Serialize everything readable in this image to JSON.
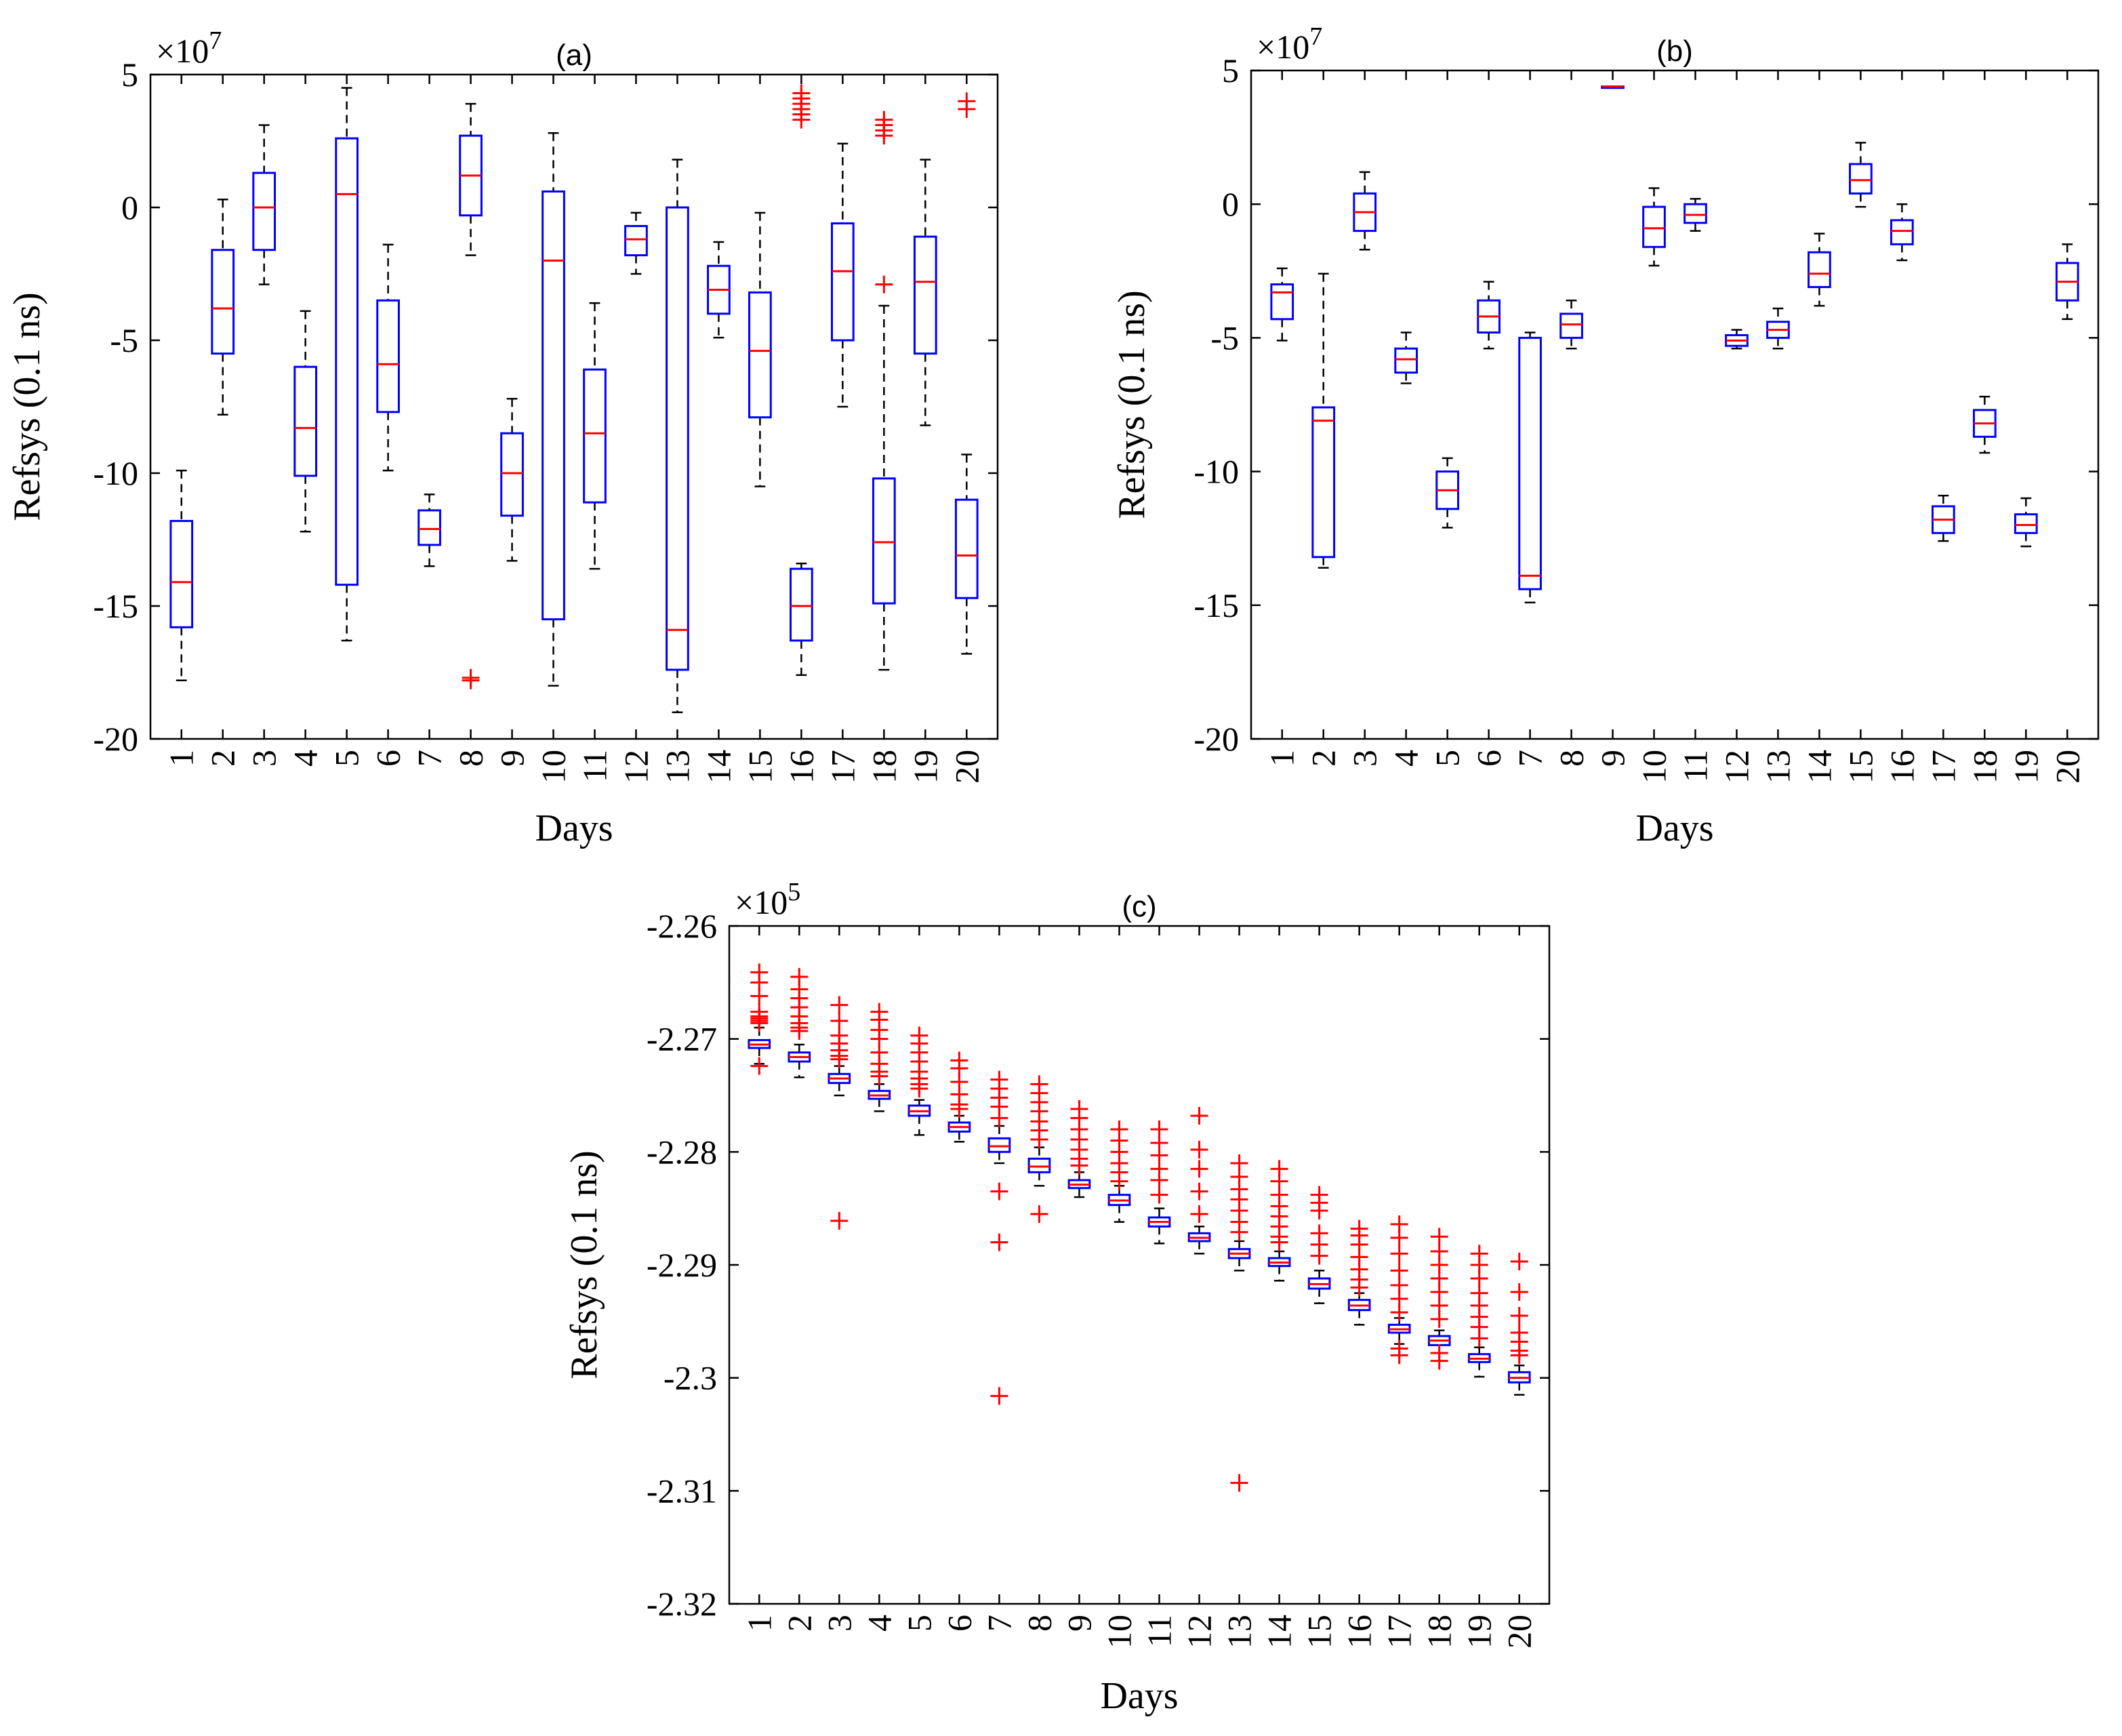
{
  "chart_data": [
    {
      "id": "a",
      "type": "box",
      "title": "(a)",
      "xlabel": "Days",
      "ylabel": "Refsys (0.1 ns)",
      "exponent_label": "×10",
      "exponent_power": "7",
      "ylim": [
        -20,
        5
      ],
      "yticks": [
        5,
        0,
        -5,
        -10,
        -15,
        -20
      ],
      "ytick_labels": [
        "5",
        "0",
        "-5",
        "-10",
        "-15",
        "-20"
      ],
      "categories": [
        "1",
        "2",
        "3",
        "4",
        "5",
        "6",
        "7",
        "8",
        "9",
        "10",
        "11",
        "12",
        "13",
        "14",
        "15",
        "16",
        "17",
        "18",
        "19",
        "20"
      ],
      "boxes": [
        {
          "wlo": -17.8,
          "q1": -15.8,
          "med": -14.1,
          "q3": -11.8,
          "whi": -9.9,
          "outliers": []
        },
        {
          "wlo": -7.8,
          "q1": -5.5,
          "med": -3.8,
          "q3": -1.6,
          "whi": 0.3,
          "outliers": []
        },
        {
          "wlo": -2.9,
          "q1": -1.6,
          "med": 0.0,
          "q3": 1.3,
          "whi": 3.1,
          "outliers": []
        },
        {
          "wlo": -12.2,
          "q1": -10.1,
          "med": -8.3,
          "q3": -6.0,
          "whi": -3.9,
          "outliers": []
        },
        {
          "wlo": -16.3,
          "q1": -14.2,
          "med": 0.5,
          "q3": 2.6,
          "whi": 4.5,
          "outliers": []
        },
        {
          "wlo": -9.9,
          "q1": -7.7,
          "med": -5.9,
          "q3": -3.5,
          "whi": -1.4,
          "outliers": []
        },
        {
          "wlo": -13.5,
          "q1": -12.7,
          "med": -12.1,
          "q3": -11.4,
          "whi": -10.8,
          "outliers": []
        },
        {
          "wlo": -1.8,
          "q1": -0.3,
          "med": 1.2,
          "q3": 2.7,
          "whi": 3.9,
          "outliers": [
            -17.7,
            -17.8
          ]
        },
        {
          "wlo": -13.3,
          "q1": -11.6,
          "med": -10.0,
          "q3": -8.5,
          "whi": -7.2,
          "outliers": []
        },
        {
          "wlo": -18.0,
          "q1": -15.5,
          "med": -2.0,
          "q3": 0.6,
          "whi": 2.8,
          "outliers": []
        },
        {
          "wlo": -13.6,
          "q1": -11.1,
          "med": -8.5,
          "q3": -6.1,
          "whi": -3.6,
          "outliers": []
        },
        {
          "wlo": -2.5,
          "q1": -1.8,
          "med": -1.2,
          "q3": -0.7,
          "whi": -0.2,
          "outliers": []
        },
        {
          "wlo": -19.0,
          "q1": -17.4,
          "med": -15.9,
          "q3": 0.0,
          "whi": 1.8,
          "outliers": []
        },
        {
          "wlo": -4.9,
          "q1": -4.0,
          "med": -3.1,
          "q3": -2.2,
          "whi": -1.3,
          "outliers": []
        },
        {
          "wlo": -10.5,
          "q1": -7.9,
          "med": -5.4,
          "q3": -3.2,
          "whi": -0.2,
          "outliers": []
        },
        {
          "wlo": -17.6,
          "q1": -16.3,
          "med": -15.0,
          "q3": -13.6,
          "whi": -13.4,
          "outliers": [
            3.3,
            3.5,
            3.7,
            3.9,
            4.1,
            4.3
          ]
        },
        {
          "wlo": -7.5,
          "q1": -5.0,
          "med": -2.4,
          "q3": -0.6,
          "whi": 2.4,
          "outliers": []
        },
        {
          "wlo": -17.4,
          "q1": -14.9,
          "med": -12.6,
          "q3": -10.2,
          "whi": -3.7,
          "outliers": [
            -2.9,
            2.7,
            2.9,
            3.1,
            3.3
          ]
        },
        {
          "wlo": -8.2,
          "q1": -5.5,
          "med": -2.8,
          "q3": -1.1,
          "whi": 1.8,
          "outliers": []
        },
        {
          "wlo": -16.8,
          "q1": -14.7,
          "med": -13.1,
          "q3": -11.0,
          "whi": -9.3,
          "outliers": [
            3.7,
            4.0
          ]
        }
      ]
    },
    {
      "id": "b",
      "type": "box",
      "title": "(b)",
      "xlabel": "Days",
      "ylabel": "Refsys (0.1 ns)",
      "exponent_label": "×10",
      "exponent_power": "7",
      "ylim": [
        -20,
        5
      ],
      "yticks": [
        5,
        0,
        -5,
        -10,
        -15,
        -20
      ],
      "ytick_labels": [
        "5",
        "0",
        "-5",
        "-10",
        "-15",
        "-20"
      ],
      "categories": [
        "1",
        "2",
        "3",
        "4",
        "5",
        "6",
        "7",
        "8",
        "9",
        "10",
        "11",
        "12",
        "13",
        "14",
        "15",
        "16",
        "17",
        "18",
        "19",
        "20"
      ],
      "boxes": [
        {
          "wlo": -5.1,
          "q1": -4.3,
          "med": -3.3,
          "q3": -3.0,
          "whi": -2.4,
          "outliers": []
        },
        {
          "wlo": -13.6,
          "q1": -13.2,
          "med": -8.1,
          "q3": -7.6,
          "whi": -2.6,
          "outliers": []
        },
        {
          "wlo": -1.7,
          "q1": -1.0,
          "med": -0.3,
          "q3": 0.4,
          "whi": 1.2,
          "outliers": []
        },
        {
          "wlo": -6.7,
          "q1": -6.3,
          "med": -5.8,
          "q3": -5.4,
          "whi": -4.8,
          "outliers": []
        },
        {
          "wlo": -12.1,
          "q1": -11.4,
          "med": -10.7,
          "q3": -10.0,
          "whi": -9.5,
          "outliers": []
        },
        {
          "wlo": -5.4,
          "q1": -4.8,
          "med": -4.2,
          "q3": -3.6,
          "whi": -2.9,
          "outliers": []
        },
        {
          "wlo": -14.9,
          "q1": -14.4,
          "med": -13.9,
          "q3": -5.0,
          "whi": -4.8,
          "outliers": []
        },
        {
          "wlo": -5.4,
          "q1": -5.0,
          "med": -4.5,
          "q3": -4.1,
          "whi": -3.6,
          "outliers": []
        },
        {
          "wlo": 4.4,
          "q1": 4.4,
          "med": 4.4,
          "q3": 4.4,
          "whi": 4.4,
          "outliers": []
        },
        {
          "wlo": -2.3,
          "q1": -1.6,
          "med": -0.9,
          "q3": -0.1,
          "whi": 0.6,
          "outliers": []
        },
        {
          "wlo": -1.0,
          "q1": -0.7,
          "med": -0.4,
          "q3": 0.0,
          "whi": 0.2,
          "outliers": []
        },
        {
          "wlo": -5.4,
          "q1": -5.3,
          "med": -5.1,
          "q3": -4.9,
          "whi": -4.7,
          "outliers": []
        },
        {
          "wlo": -5.4,
          "q1": -5.0,
          "med": -4.7,
          "q3": -4.4,
          "whi": -3.9,
          "outliers": []
        },
        {
          "wlo": -3.8,
          "q1": -3.1,
          "med": -2.6,
          "q3": -1.8,
          "whi": -1.1,
          "outliers": []
        },
        {
          "wlo": -0.1,
          "q1": 0.4,
          "med": 0.9,
          "q3": 1.5,
          "whi": 2.3,
          "outliers": []
        },
        {
          "wlo": -2.1,
          "q1": -1.5,
          "med": -1.0,
          "q3": -0.6,
          "whi": 0.0,
          "outliers": []
        },
        {
          "wlo": -12.6,
          "q1": -12.3,
          "med": -11.8,
          "q3": -11.3,
          "whi": -10.9,
          "outliers": []
        },
        {
          "wlo": -9.3,
          "q1": -8.7,
          "med": -8.2,
          "q3": -7.7,
          "whi": -7.2,
          "outliers": []
        },
        {
          "wlo": -12.8,
          "q1": -12.3,
          "med": -12.0,
          "q3": -11.6,
          "whi": -11.0,
          "outliers": []
        },
        {
          "wlo": -4.3,
          "q1": -3.6,
          "med": -2.9,
          "q3": -2.2,
          "whi": -1.5,
          "outliers": []
        }
      ]
    },
    {
      "id": "c",
      "type": "box",
      "title": "(c)",
      "xlabel": "Days",
      "ylabel": "Refsys (0.1 ns)",
      "exponent_label": "×10",
      "exponent_power": "5",
      "ylim": [
        -2.32,
        -2.26
      ],
      "yticks": [
        -2.26,
        -2.27,
        -2.28,
        -2.29,
        -2.3,
        -2.31,
        -2.32
      ],
      "ytick_labels": [
        "-2.26",
        "-2.27",
        "-2.28",
        "-2.29",
        "-2.3",
        "-2.31",
        "-2.32"
      ],
      "categories": [
        "1",
        "2",
        "3",
        "4",
        "5",
        "6",
        "7",
        "8",
        "9",
        "10",
        "11",
        "12",
        "13",
        "14",
        "15",
        "16",
        "17",
        "18",
        "19",
        "20"
      ],
      "boxes": [
        {
          "wlo": -2.2722,
          "q1": -2.2708,
          "med": -2.2705,
          "q3": -2.2701,
          "whi": -2.269,
          "outliers": [
            -2.2641,
            -2.265,
            -2.2662,
            -2.2676,
            -2.268,
            -2.2682,
            -2.2684,
            -2.2686,
            -2.2724
          ]
        },
        {
          "wlo": -2.2734,
          "q1": -2.272,
          "med": -2.2716,
          "q3": -2.2712,
          "whi": -2.2705,
          "outliers": [
            -2.2645,
            -2.2656,
            -2.2664,
            -2.2672,
            -2.268,
            -2.2686,
            -2.269,
            -2.2693
          ]
        },
        {
          "wlo": -2.275,
          "q1": -2.2739,
          "med": -2.2735,
          "q3": -2.2731,
          "whi": -2.2724,
          "outliers": [
            -2.267,
            -2.2684,
            -2.2697,
            -2.2704,
            -2.271,
            -2.2715,
            -2.2718,
            -2.2861
          ]
        },
        {
          "wlo": -2.2764,
          "q1": -2.2753,
          "med": -2.275,
          "q3": -2.2746,
          "whi": -2.274,
          "outliers": [
            -2.2676,
            -2.2683,
            -2.2692,
            -2.27,
            -2.2712,
            -2.2722,
            -2.2729,
            -2.2733
          ]
        },
        {
          "wlo": -2.2785,
          "q1": -2.2768,
          "med": -2.2764,
          "q3": -2.2759,
          "whi": -2.2754,
          "outliers": [
            -2.2697,
            -2.2704,
            -2.2712,
            -2.272,
            -2.2729,
            -2.2735,
            -2.274,
            -2.2744
          ]
        },
        {
          "wlo": -2.2791,
          "q1": -2.2782,
          "med": -2.2778,
          "q3": -2.2774,
          "whi": -2.2768,
          "outliers": [
            -2.2719,
            -2.2726,
            -2.2738,
            -2.2749,
            -2.2758,
            -2.2762
          ]
        },
        {
          "wlo": -2.281,
          "q1": -2.28,
          "med": -2.2795,
          "q3": -2.2788,
          "whi": -2.2777,
          "outliers": [
            -2.2736,
            -2.2744,
            -2.2752,
            -2.276,
            -2.277,
            -2.2835,
            -2.288,
            -2.3016
          ]
        },
        {
          "wlo": -2.283,
          "q1": -2.2818,
          "med": -2.2813,
          "q3": -2.2806,
          "whi": -2.2796,
          "outliers": [
            -2.274,
            -2.2748,
            -2.2756,
            -2.2764,
            -2.2773,
            -2.2781,
            -2.2789,
            -2.2855
          ]
        },
        {
          "wlo": -2.284,
          "q1": -2.2832,
          "med": -2.2829,
          "q3": -2.2825,
          "whi": -2.2818,
          "outliers": [
            -2.2762,
            -2.277,
            -2.278,
            -2.2789,
            -2.2798,
            -2.2806,
            -2.2812
          ]
        },
        {
          "wlo": -2.2862,
          "q1": -2.2847,
          "med": -2.2843,
          "q3": -2.2838,
          "whi": -2.283,
          "outliers": [
            -2.278,
            -2.279,
            -2.28,
            -2.281,
            -2.2818,
            -2.2826
          ]
        },
        {
          "wlo": -2.2881,
          "q1": -2.2866,
          "med": -2.2862,
          "q3": -2.2858,
          "whi": -2.285,
          "outliers": [
            -2.278,
            -2.2792,
            -2.2803,
            -2.2815,
            -2.2825,
            -2.2838
          ]
        },
        {
          "wlo": -2.289,
          "q1": -2.2879,
          "med": -2.2876,
          "q3": -2.2872,
          "whi": -2.2866,
          "outliers": [
            -2.2768,
            -2.2798,
            -2.2815,
            -2.2835,
            -2.2855
          ]
        },
        {
          "wlo": -2.2905,
          "q1": -2.2894,
          "med": -2.289,
          "q3": -2.2886,
          "whi": -2.2879,
          "outliers": [
            -2.281,
            -2.2822,
            -2.2833,
            -2.2842,
            -2.2852,
            -2.2862,
            -2.2871,
            -2.3093
          ]
        },
        {
          "wlo": -2.2914,
          "q1": -2.2901,
          "med": -2.2898,
          "q3": -2.2894,
          "whi": -2.2888,
          "outliers": [
            -2.2815,
            -2.2826,
            -2.2838,
            -2.2848,
            -2.2857,
            -2.2866,
            -2.2875,
            -2.288
          ]
        },
        {
          "wlo": -2.2934,
          "q1": -2.2921,
          "med": -2.2917,
          "q3": -2.2912,
          "whi": -2.2905,
          "outliers": [
            -2.2838,
            -2.2845,
            -2.2852,
            -2.2872,
            -2.2882,
            -2.2892
          ]
        },
        {
          "wlo": -2.2953,
          "q1": -2.294,
          "med": -2.2936,
          "q3": -2.2931,
          "whi": -2.2925,
          "outliers": [
            -2.2868,
            -2.2874,
            -2.2882,
            -2.2893,
            -2.2904,
            -2.2913,
            -2.292
          ]
        },
        {
          "wlo": -2.297,
          "q1": -2.296,
          "med": -2.2957,
          "q3": -2.2953,
          "whi": -2.2947,
          "outliers": [
            -2.2864,
            -2.2876,
            -2.289,
            -2.2905,
            -2.2918,
            -2.293,
            -2.2942,
            -2.2974,
            -2.298
          ]
        },
        {
          "wlo": -2.2978,
          "q1": -2.2971,
          "med": -2.2967,
          "q3": -2.2963,
          "whi": -2.2958,
          "outliers": [
            -2.2875,
            -2.2888,
            -2.29,
            -2.2912,
            -2.2924,
            -2.2936,
            -2.2948,
            -2.2978,
            -2.2985
          ]
        },
        {
          "wlo": -2.2999,
          "q1": -2.2986,
          "med": -2.2983,
          "q3": -2.2979,
          "whi": -2.2973,
          "outliers": [
            -2.289,
            -2.29,
            -2.2912,
            -2.2925,
            -2.2936,
            -2.2946,
            -2.2955,
            -2.2965
          ]
        },
        {
          "wlo": -2.3015,
          "q1": -2.3004,
          "med": -2.3,
          "q3": -2.2995,
          "whi": -2.2989,
          "outliers": [
            -2.2897,
            -2.2924,
            -2.2945,
            -2.296,
            -2.2968,
            -2.2976,
            -2.298
          ]
        }
      ]
    }
  ]
}
